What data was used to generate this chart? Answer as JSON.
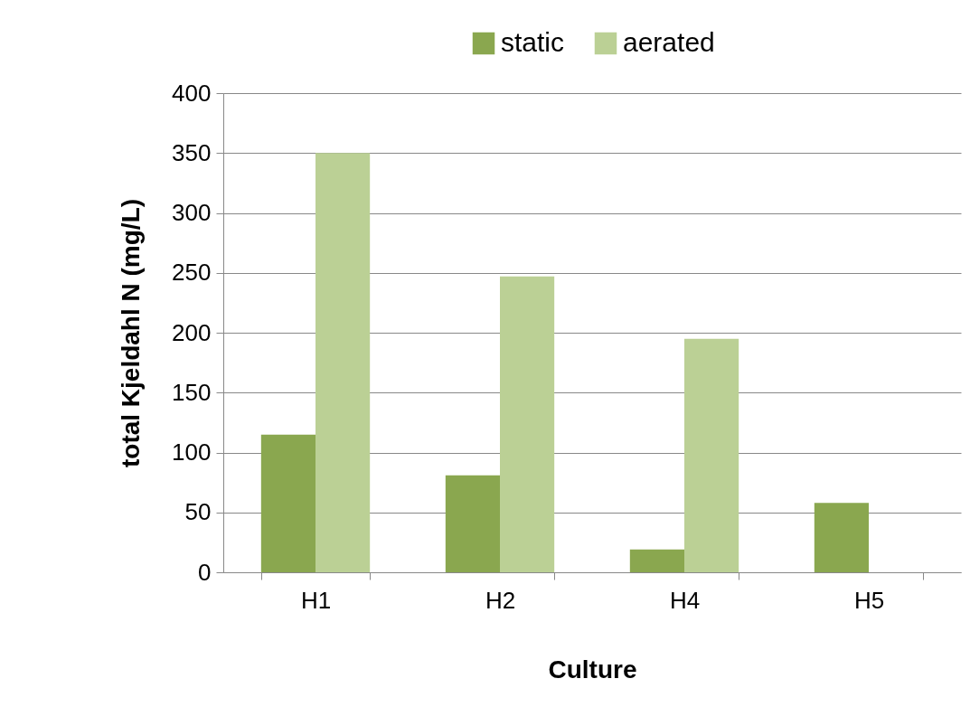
{
  "chart_data": {
    "type": "bar",
    "xlabel": "Culture",
    "ylabel": "total Kjeldahl N (mg/L)",
    "categories": [
      "H1",
      "H2",
      "H4",
      "H5"
    ],
    "series": [
      {
        "name": "static",
        "color": "#8aa74f",
        "values": [
          115,
          81,
          19,
          58
        ]
      },
      {
        "name": "aerated",
        "color": "#bbd095",
        "values": [
          350,
          247,
          195,
          null
        ]
      }
    ],
    "ylim": [
      0,
      400
    ],
    "yticks": [
      0,
      50,
      100,
      150,
      200,
      250,
      300,
      350,
      400
    ],
    "grid": "y",
    "legend": "top"
  }
}
